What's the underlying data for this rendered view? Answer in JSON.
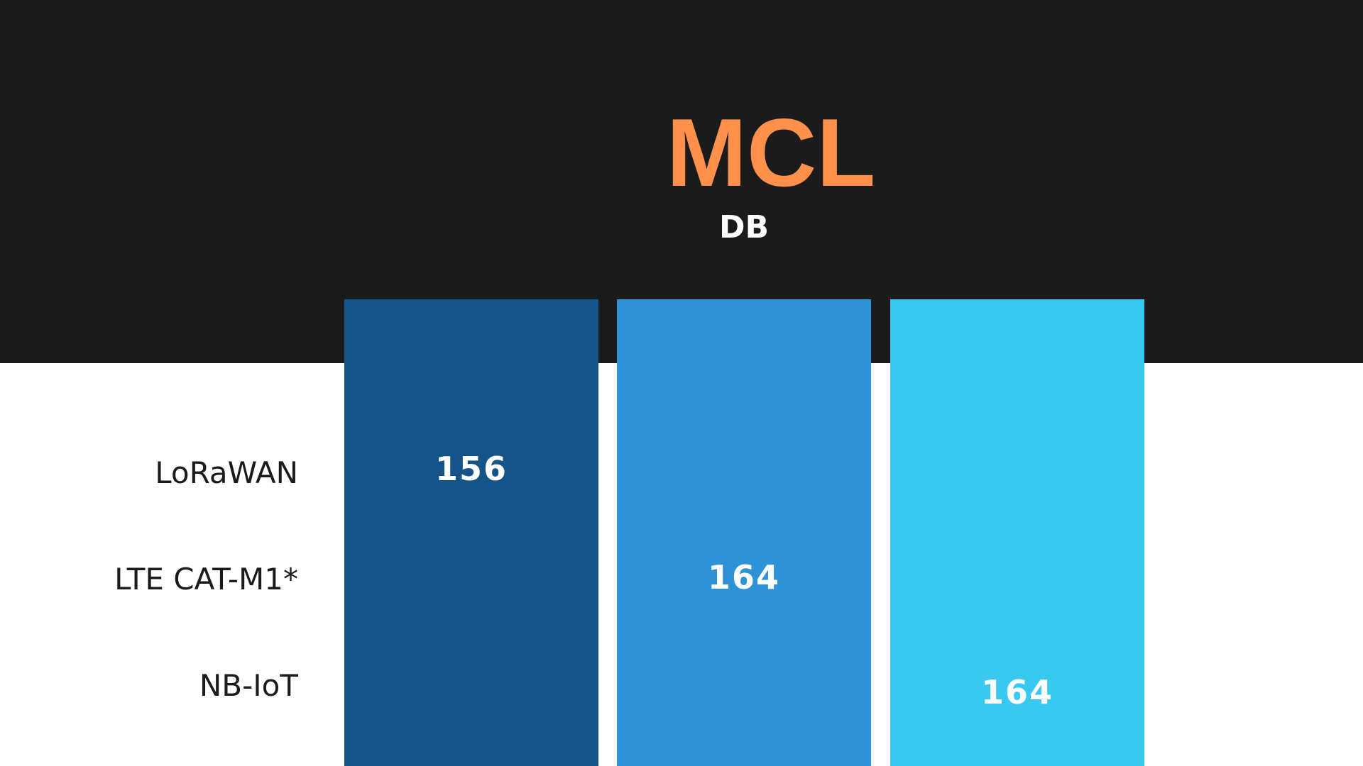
{
  "title": "MCL",
  "subtitle": "DB",
  "rows": [
    {
      "label": "LoRaWAN",
      "value": 156
    },
    {
      "label": "LTE CAT-M1*",
      "value": 164
    },
    {
      "label": "NB-IoT",
      "value": 164
    }
  ]
}
